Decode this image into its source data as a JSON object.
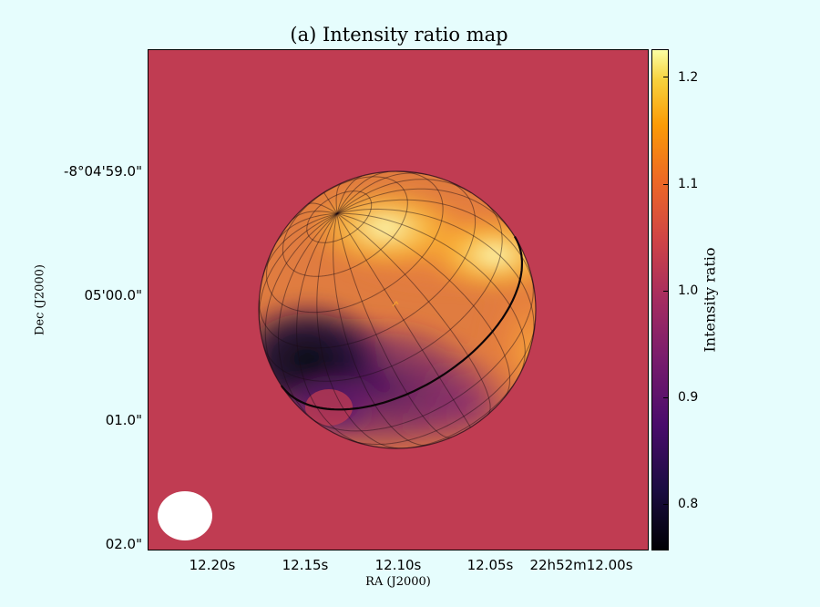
{
  "chart_data": {
    "type": "heatmap",
    "title": "(a) Intensity ratio map",
    "xlabel": "RA (J2000)",
    "ylabel": "Dec (J2000)",
    "x_ticks": [
      "12.20s",
      "12.15s",
      "12.10s",
      "12.05s",
      "22h52m12.00s"
    ],
    "y_ticks": [
      "-8°04'59.0\"",
      "05'00.0\"",
      "01.0\"",
      "02.0\""
    ],
    "colorbar": {
      "label": "Intensity ratio",
      "colormap": "inferno",
      "range": [
        0.75,
        1.225
      ],
      "ticks": [
        "1.2",
        "1.1",
        "1.0",
        "0.9",
        "0.8"
      ]
    },
    "background_value": 1.0,
    "features": {
      "bright_band_max": 1.2,
      "dark_spot_min": 0.76,
      "beam": "white ellipse, lower-left"
    }
  },
  "colors": {
    "background": "#e6fdfd",
    "plot_fill": "#c03c52",
    "beam": "#ffffff"
  }
}
